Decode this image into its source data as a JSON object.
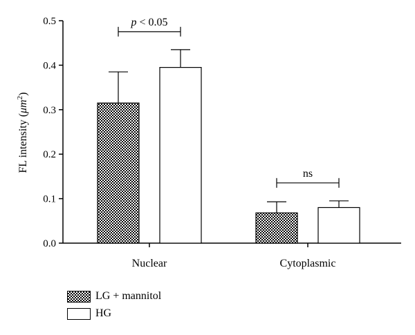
{
  "chart_data": {
    "type": "bar",
    "categories": [
      "Nuclear",
      "Cytoplasmic"
    ],
    "series": [
      {
        "name": "LG + mannitol",
        "values": [
          0.315,
          0.068
        ],
        "errors": [
          0.07,
          0.025
        ],
        "fill": "checkerboard"
      },
      {
        "name": "HG",
        "values": [
          0.395,
          0.08
        ],
        "errors": [
          0.04,
          0.015
        ],
        "fill": "white"
      }
    ],
    "ylabel_main": "FL intensity (",
    "ylabel_unit": "μm",
    "ylabel_sup": "2",
    "ylabel_end": ")",
    "ylim": [
      0,
      0.5
    ],
    "yticks": [
      "0.0",
      "0.1",
      "0.2",
      "0.3",
      "0.4",
      "0.5"
    ],
    "annotations": [
      {
        "category": "Nuclear",
        "prefix": "p",
        "text": " < 0.05"
      },
      {
        "category": "Cytoplasmic",
        "prefix": "",
        "text": "ns"
      }
    ],
    "grid": false,
    "legend_position": "bottom-left"
  }
}
